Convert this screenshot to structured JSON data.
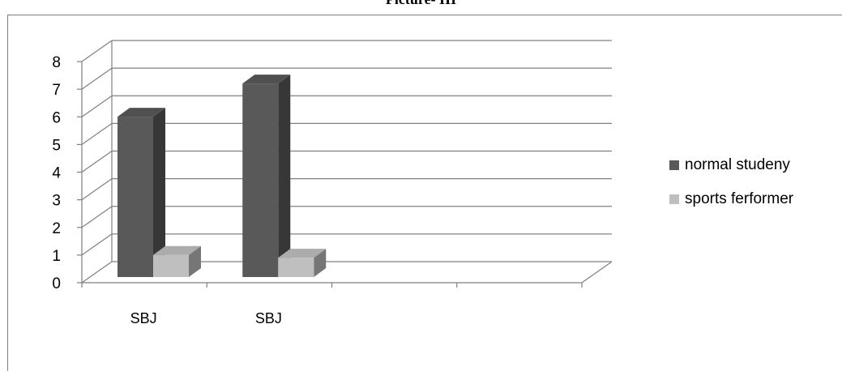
{
  "chart_data": {
    "type": "bar",
    "title": "Picture- III",
    "categories": [
      "SBJ",
      "SBJ",
      "",
      ""
    ],
    "series": [
      {
        "name": "normal studeny",
        "values": [
          5.8,
          7,
          null,
          null
        ],
        "color": "#595959"
      },
      {
        "name": "sports ferformer",
        "values": [
          0.8,
          0.7,
          null,
          null
        ],
        "color": "#bfbfbf"
      }
    ],
    "ylim": [
      0,
      8
    ],
    "yticks": [
      0,
      1,
      2,
      3,
      4,
      5,
      6,
      7,
      8
    ],
    "grid": true,
    "three_d": true,
    "legend_position": "right"
  }
}
